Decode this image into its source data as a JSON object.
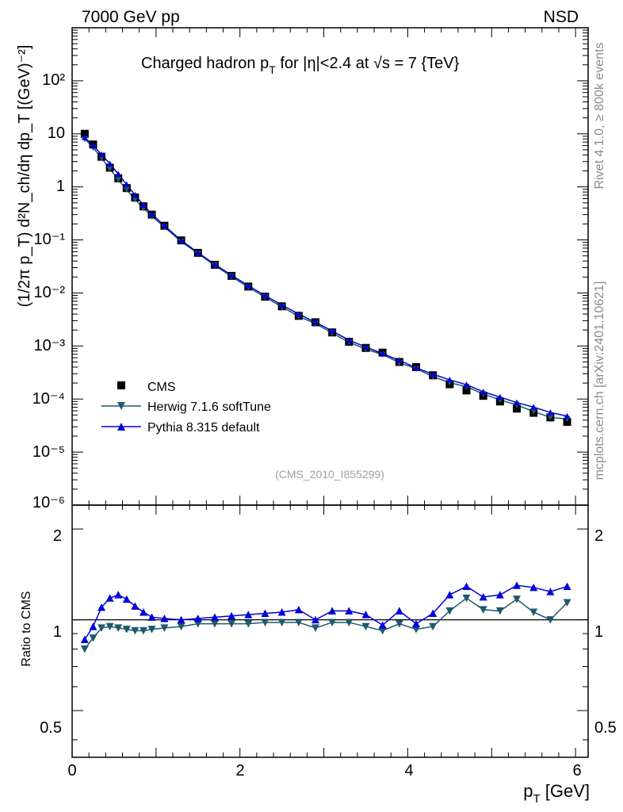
{
  "header": {
    "energy_label": "7000 GeV pp",
    "process_label": "NSD",
    "title_main": "Charged hadron p",
    "title_sub": "T",
    "title_rest": " for |η|<2.4 at √s = 7 {TeV}",
    "analysis_id": "(CMS_2010_I855299)",
    "rivet_label": "Rivet 4.1.0, ≥ 800k events",
    "mcplots_label": "mcplots.cern.ch [arXiv:2401.10621]"
  },
  "axes": {
    "ylabel": "(1/2π p_T) d²N_ch/dη dp_T [(GeV)⁻²]",
    "ratio_ylabel": "Ratio to CMS",
    "xlabel_main": "p",
    "xlabel_sub": "T",
    "xlabel_rest": " [GeV]",
    "x_ticks": [
      "0",
      "2",
      "4",
      "6"
    ],
    "y_ticks": [
      "10⁻⁶",
      "10⁻⁵",
      "10⁻⁴",
      "10⁻³",
      "10⁻²",
      "10⁻¹",
      "1",
      "10",
      "10²"
    ],
    "ratio_ticks": [
      "0.5",
      "1",
      "2"
    ]
  },
  "legend": {
    "cms": "CMS",
    "herwig": "Herwig 7.1.6 softTune",
    "pythia": "Pythia 8.315 default"
  },
  "colors": {
    "cms": "#000000",
    "herwig": "#1d5a6a",
    "pythia": "#0000dd"
  },
  "chart_data": {
    "type": "scatter",
    "title": "Charged hadron pT for |eta|<2.4 at sqrt(s) = 7 TeV",
    "xlabel": "pT [GeV]",
    "ylabel": "(1/2pi pT) d2Nch/deta dpT [(GeV)^-2]",
    "xlim": [
      0,
      6.15
    ],
    "ylim": [
      1e-06,
      1000
    ],
    "yscale": "log",
    "ratio_ylim": [
      0.35,
      2.4
    ],
    "x": [
      0.15,
      0.25,
      0.35,
      0.45,
      0.55,
      0.65,
      0.75,
      0.85,
      0.95,
      1.1,
      1.3,
      1.5,
      1.7,
      1.9,
      2.1,
      2.3,
      2.5,
      2.7,
      2.9,
      3.1,
      3.3,
      3.5,
      3.7,
      3.9,
      4.1,
      4.3,
      4.5,
      4.7,
      4.9,
      5.1,
      5.3,
      5.5,
      5.7,
      5.9
    ],
    "series": [
      {
        "name": "CMS",
        "values": [
          10.0,
          6.3,
          3.7,
          2.3,
          1.45,
          0.95,
          0.63,
          0.43,
          0.3,
          0.185,
          0.098,
          0.057,
          0.034,
          0.021,
          0.0132,
          0.0085,
          0.0056,
          0.0037,
          0.0028,
          0.0018,
          0.0012,
          0.00092,
          0.00075,
          0.0005,
          0.0004,
          0.00028,
          0.00019,
          0.000145,
          0.000115,
          9e-05,
          6.6e-05,
          5.5e-05,
          4.5e-05,
          3.7e-05
        ]
      },
      {
        "name": "Herwig 7.1.6 softTune",
        "ratio": [
          0.8,
          0.87,
          0.94,
          0.95,
          0.94,
          0.93,
          0.92,
          0.92,
          0.93,
          0.94,
          0.95,
          0.97,
          0.97,
          0.97,
          0.97,
          0.98,
          0.98,
          0.98,
          0.94,
          0.98,
          0.98,
          0.95,
          0.92,
          0.97,
          0.93,
          0.95,
          1.07,
          1.18,
          1.08,
          1.07,
          1.17,
          1.06,
          1.0,
          1.14
        ]
      },
      {
        "name": "Pythia 8.315 default",
        "ratio": [
          0.86,
          0.95,
          1.1,
          1.18,
          1.21,
          1.17,
          1.11,
          1.06,
          1.02,
          1.01,
          1.0,
          1.01,
          1.02,
          1.03,
          1.04,
          1.05,
          1.06,
          1.08,
          1.0,
          1.07,
          1.07,
          1.04,
          0.96,
          1.07,
          0.97,
          1.05,
          1.21,
          1.29,
          1.19,
          1.21,
          1.3,
          1.28,
          1.24,
          1.29
        ]
      }
    ]
  }
}
